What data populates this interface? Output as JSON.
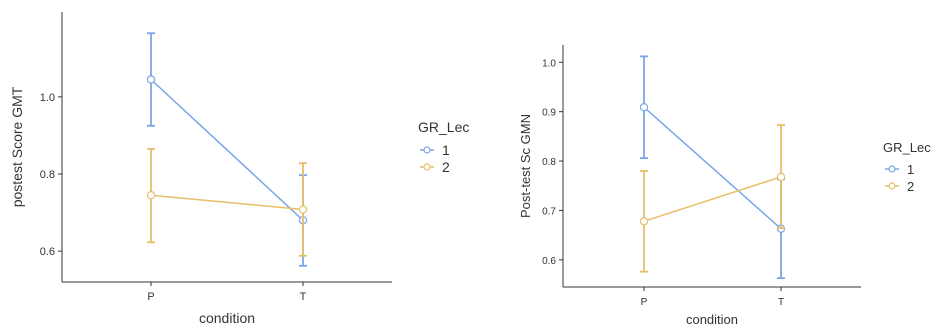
{
  "colors": {
    "group1": "#7aa6e8",
    "group2": "#e8be6a",
    "axis": "#333333",
    "text": "#333333"
  },
  "chart_data": [
    {
      "type": "line",
      "xlabel": "condition",
      "ylabel": "postest Score GMT",
      "categories": [
        "P",
        "T"
      ],
      "ylim": [
        0.52,
        1.22
      ],
      "yticks": [
        0.6,
        0.8,
        1.0
      ],
      "ytick_labels": [
        "0.6",
        "0.8",
        "1.0"
      ],
      "legend": {
        "title": "GR_Lec",
        "placement": "right"
      },
      "grid": false,
      "series": [
        {
          "name": "1",
          "color": "#7aa6e8",
          "values": [
            1.045,
            0.68
          ],
          "lower": [
            0.925,
            0.562
          ],
          "upper": [
            1.165,
            0.797
          ]
        },
        {
          "name": "2",
          "color": "#e8be6a",
          "values": [
            0.745,
            0.708
          ],
          "lower": [
            0.623,
            0.588
          ],
          "upper": [
            0.865,
            0.828
          ]
        }
      ]
    },
    {
      "type": "line",
      "xlabel": "condition",
      "ylabel": "Post-test Sc GMN",
      "categories": [
        "P",
        "T"
      ],
      "ylim": [
        0.545,
        1.035
      ],
      "yticks": [
        0.6,
        0.7,
        0.8,
        0.9,
        1.0
      ],
      "ytick_labels": [
        "0.6",
        "0.7",
        "0.8",
        "0.9",
        "1.0"
      ],
      "legend": {
        "title": "GR_Lec",
        "placement": "right"
      },
      "grid": false,
      "series": [
        {
          "name": "1",
          "color": "#7aa6e8",
          "values": [
            0.909,
            0.663
          ],
          "lower": [
            0.806,
            0.563
          ],
          "upper": [
            1.012,
            0.763
          ]
        },
        {
          "name": "2",
          "color": "#e8be6a",
          "values": [
            0.678,
            0.768
          ],
          "lower": [
            0.576,
            0.664
          ],
          "upper": [
            0.78,
            0.873
          ]
        }
      ]
    }
  ]
}
